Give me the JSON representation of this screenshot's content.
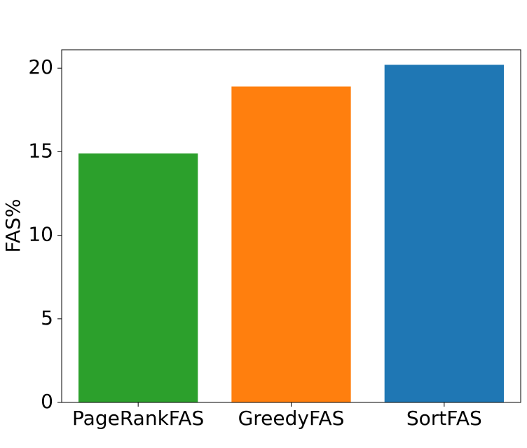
{
  "chart_data": {
    "type": "bar",
    "y_label": "FAS%",
    "categories": [
      "PageRankFAS",
      "GreedyFAS",
      "SortFAS"
    ],
    "values": [
      14.9,
      18.9,
      20.2
    ],
    "colors": [
      "#2ca02c",
      "#ff7f0e",
      "#1f77b4"
    ],
    "ylim": [
      0,
      21.1
    ],
    "yticks": [
      0,
      5,
      10,
      15,
      20
    ],
    "grid": false
  }
}
